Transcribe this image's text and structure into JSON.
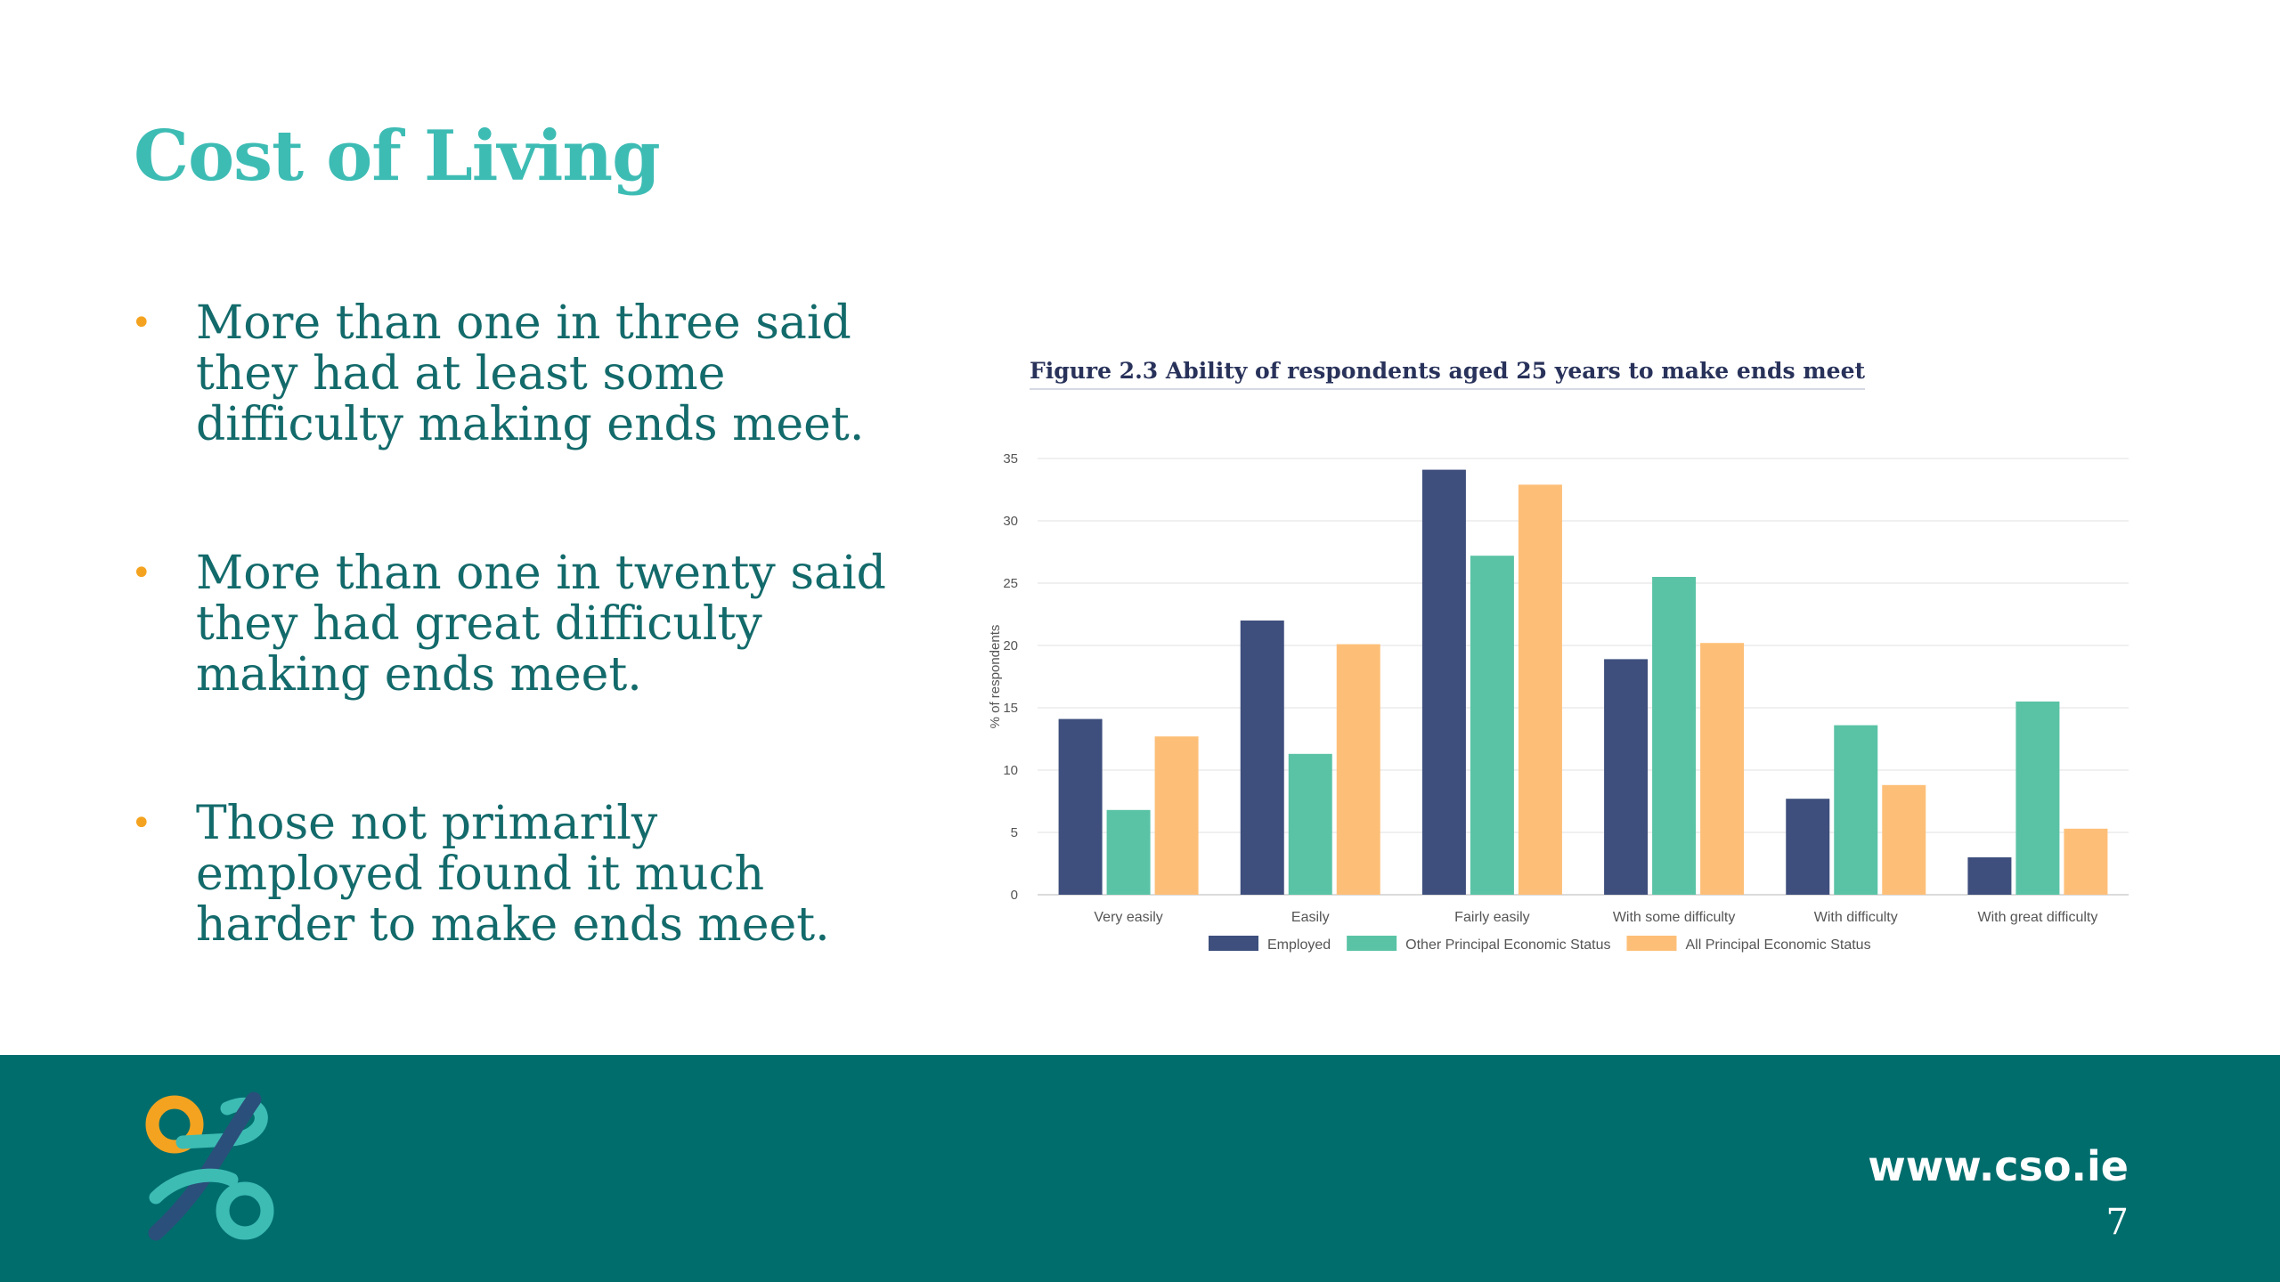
{
  "slide": {
    "title": "Cost of Living",
    "bullets": [
      "More than one in three said they had at least some difficulty making ends meet.",
      "More than one in twenty said they had great difficulty making ends meet.",
      "Those not primarily employed found it much harder to make ends meet."
    ],
    "bullet_symbol": "•"
  },
  "chart_data": {
    "type": "bar",
    "title": "Figure 2.3 Ability of respondents aged 25 years to make ends meet",
    "xlabel": "",
    "ylabel": "% of respondents",
    "ylim": [
      0,
      35
    ],
    "yticks": [
      "0",
      "5",
      "10",
      "15",
      "20",
      "25",
      "30",
      "35"
    ],
    "grid": true,
    "legend_position": "bottom",
    "categories": [
      "Very easily",
      "Easily",
      "Fairly easily",
      "With some difficulty",
      "With difficulty",
      "With great difficulty"
    ],
    "series": [
      {
        "name": "Employed",
        "color": "#3e4f7d",
        "values": [
          14.1,
          22.0,
          34.1,
          18.9,
          7.7,
          3.0
        ]
      },
      {
        "name": "Other Principal Economic Status",
        "color": "#5ac3a5",
        "values": [
          6.8,
          11.3,
          27.2,
          25.5,
          13.6,
          15.5
        ]
      },
      {
        "name": "All Principal Economic Status",
        "color": "#fdbf78",
        "values": [
          12.7,
          20.1,
          32.9,
          20.2,
          8.8,
          5.3
        ]
      }
    ]
  },
  "footer": {
    "url": "www.cso.ie",
    "page_number": "7",
    "logo_icon": "cso-logo-icon",
    "colors": {
      "background": "#006d6d",
      "accent": "#3dbcb4",
      "orange": "#f4a320"
    }
  }
}
